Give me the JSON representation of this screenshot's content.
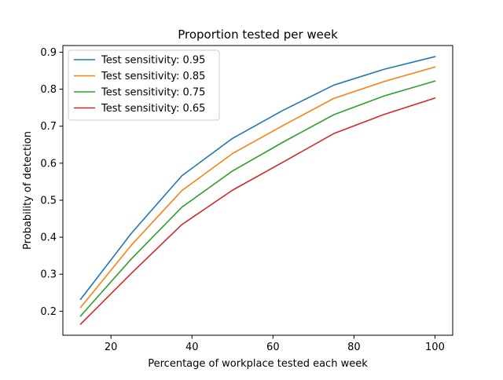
{
  "chart_data": {
    "type": "line",
    "title": "Proportion tested per week",
    "xlabel": "Percentage of workplace tested each week",
    "ylabel": "Probability of detection",
    "xlim": [
      8.125,
      104.375
    ],
    "ylim": [
      0.135,
      0.918
    ],
    "xticks": [
      20,
      40,
      60,
      80,
      100
    ],
    "yticks": [
      0.2,
      0.3,
      0.4,
      0.5,
      0.6,
      0.7,
      0.8,
      0.9
    ],
    "grid": false,
    "legend_position": "top-left",
    "x": [
      12.5,
      25,
      37.5,
      50,
      62.5,
      75,
      87.5,
      100
    ],
    "series": [
      {
        "name": "Test sensitivity: 0.95",
        "color": "#1f77b4",
        "values": [
          0.232,
          0.41,
          0.566,
          0.667,
          0.743,
          0.811,
          0.854,
          0.888
        ]
      },
      {
        "name": "Test sensitivity: 0.85",
        "color": "#ff7f0e",
        "values": [
          0.21,
          0.378,
          0.526,
          0.626,
          0.702,
          0.775,
          0.821,
          0.86
        ]
      },
      {
        "name": "Test sensitivity: 0.75",
        "color": "#2ca02c",
        "values": [
          0.187,
          0.341,
          0.481,
          0.579,
          0.657,
          0.731,
          0.782,
          0.822
        ]
      },
      {
        "name": "Test sensitivity: 0.65",
        "color": "#d62728",
        "values": [
          0.165,
          0.302,
          0.434,
          0.527,
          0.603,
          0.68,
          0.732,
          0.776
        ]
      }
    ]
  }
}
